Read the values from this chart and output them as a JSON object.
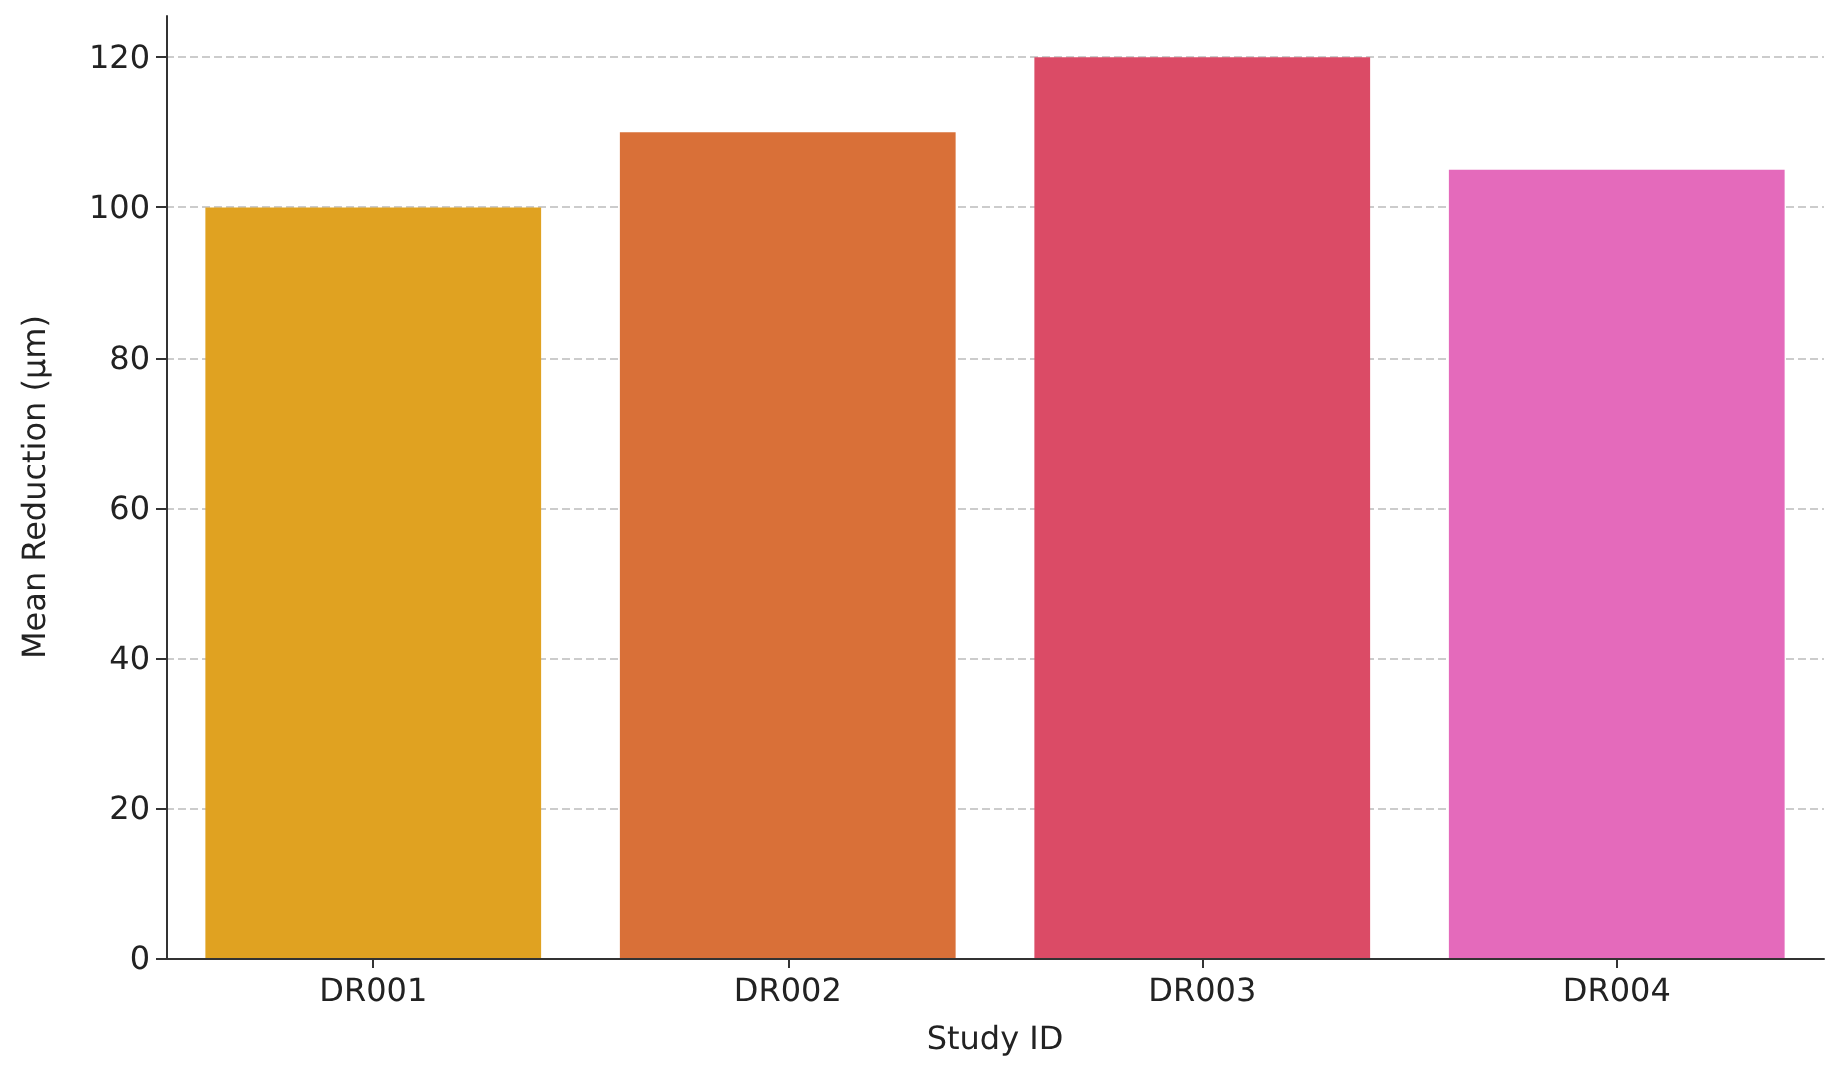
{
  "chart_data": {
    "type": "bar",
    "xlabel": "Study ID",
    "ylabel": "Mean Reduction (μm)",
    "categories": [
      "DR001",
      "DR002",
      "DR003",
      "DR004"
    ],
    "values": [
      100,
      110,
      120,
      105
    ],
    "colors": [
      "#e0a221",
      "#d97038",
      "#db4b66",
      "#e46abb"
    ],
    "ylim": [
      0,
      125.5
    ],
    "yticks": [
      0,
      20,
      40,
      60,
      80,
      100,
      120
    ],
    "grid": "y"
  }
}
